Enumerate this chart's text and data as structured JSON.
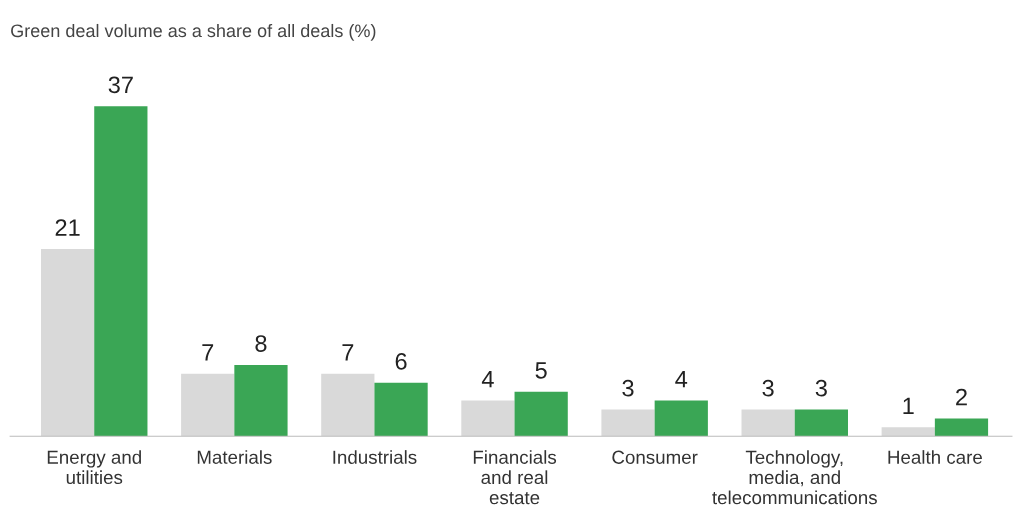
{
  "chart_data": {
    "type": "bar",
    "title": "Green deal volume as a share of all deals (%)",
    "categories": [
      "Energy and\nutilities",
      "Materials",
      "Industrials",
      "Financials\nand real\nestate",
      "Consumer",
      "Technology,\nmedia, and\ntelecommunications",
      "Health care"
    ],
    "series": [
      {
        "color": "#d9d9d9",
        "values": [
          21,
          7,
          7,
          4,
          3,
          3,
          1
        ]
      },
      {
        "color": "#3aa655",
        "values": [
          37,
          8,
          6,
          5,
          4,
          3,
          2
        ]
      }
    ],
    "data_labels": true,
    "grid": false,
    "legend": false
  }
}
